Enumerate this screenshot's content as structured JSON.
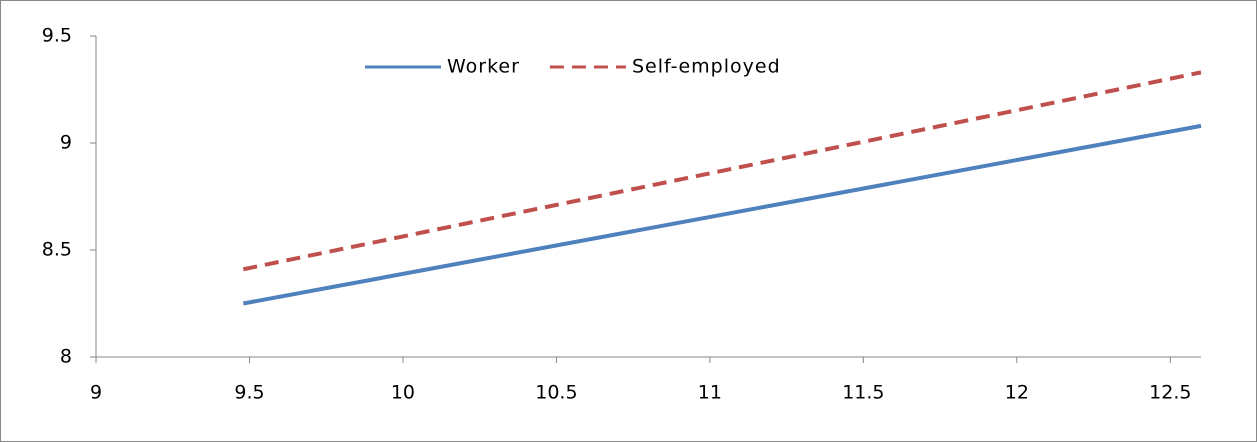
{
  "chart_data": {
    "type": "line",
    "series": [
      {
        "name": "Worker",
        "color": "#4f81bd",
        "dash": false,
        "x": [
          9.48,
          12.6
        ],
        "values": [
          8.25,
          9.08
        ]
      },
      {
        "name": "Self-employed",
        "color": "#c0504d",
        "dash": true,
        "x": [
          9.48,
          12.6
        ],
        "values": [
          8.41,
          9.33
        ]
      }
    ],
    "xlim": [
      9,
      12.6
    ],
    "xticks": [
      9,
      9.5,
      10,
      10.5,
      11,
      11.5,
      12,
      12.5
    ],
    "ylim": [
      8,
      9.5
    ],
    "yticks": [
      8,
      8.5,
      9,
      9.5
    ],
    "grid": false,
    "legend": "top"
  }
}
